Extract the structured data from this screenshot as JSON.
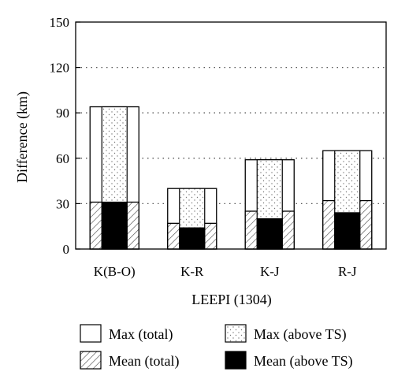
{
  "chart_data": {
    "type": "bar",
    "xlabel": "LEEPI (1304)",
    "ylabel": "Difference (km)",
    "ylim": [
      0,
      150
    ],
    "yticks": [
      0,
      30,
      60,
      90,
      120,
      150
    ],
    "grid": "horizontal dotted",
    "categories": [
      "K(B-O)",
      "K-R",
      "K-J",
      "R-J"
    ],
    "series": [
      {
        "name": "Max (total)",
        "values": [
          94,
          40,
          59,
          65
        ],
        "style": "white"
      },
      {
        "name": "Max (above TS)",
        "values": [
          94,
          40,
          59,
          65
        ],
        "style": "dotted"
      },
      {
        "name": "Mean (total)",
        "values": [
          31,
          17,
          25,
          32
        ],
        "style": "hatched"
      },
      {
        "name": "Mean (above TS)",
        "values": [
          31,
          14,
          20,
          24
        ],
        "style": "black"
      }
    ],
    "legend_position": "bottom",
    "colors": {
      "bar_stroke": "#000000",
      "fill_black": "#000000",
      "fill_white": "#ffffff"
    }
  }
}
